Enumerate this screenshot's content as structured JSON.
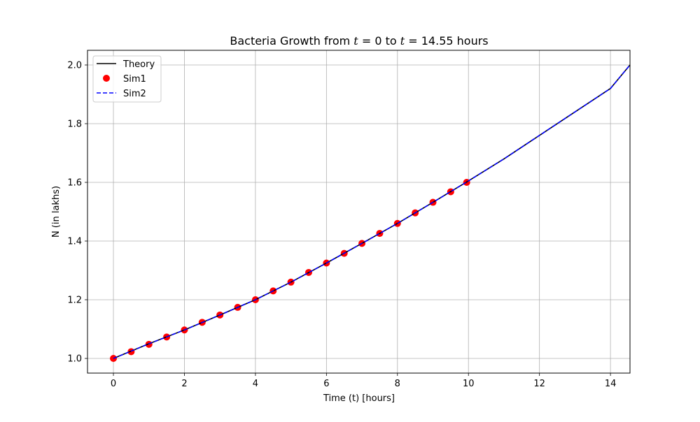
{
  "chart_data": {
    "type": "line",
    "title": "Bacteria Growth from t = 0 to t = 14.55 hours",
    "title_parts": {
      "prefix": "Bacteria Growth from ",
      "var1": "t",
      "mid1": " = 0 to ",
      "var2": "t",
      "suffix": " = 14.55 hours"
    },
    "xlabel": "Time (t) [hours]",
    "ylabel": "N (in lakhs)",
    "xlim": [
      -0.73,
      14.55
    ],
    "ylim": [
      0.95,
      2.05
    ],
    "xticks": [
      0,
      2,
      4,
      6,
      8,
      10,
      12,
      14
    ],
    "xtick_labels": [
      "0",
      "2",
      "4",
      "6",
      "8",
      "10",
      "12",
      "14"
    ],
    "yticks": [
      1.0,
      1.2,
      1.4,
      1.6,
      1.8,
      2.0
    ],
    "ytick_labels": [
      "1.0",
      "1.2",
      "1.4",
      "1.6",
      "1.8",
      "2.0"
    ],
    "grid": true,
    "legend_position": "upper-left",
    "legend": [
      "Theory",
      "Sim1",
      "Sim2"
    ],
    "series": [
      {
        "name": "Theory",
        "style": "solid-line",
        "color": "#000000",
        "x": [
          0,
          1,
          2,
          3,
          4,
          5,
          6,
          7,
          8,
          9,
          10,
          11,
          12,
          13,
          14,
          14.55
        ],
        "y": [
          1.0,
          1.05,
          1.097,
          1.148,
          1.2,
          1.26,
          1.325,
          1.392,
          1.46,
          1.532,
          1.605,
          1.68,
          1.76,
          1.84,
          1.92,
          2.0
        ]
      },
      {
        "name": "Sim1",
        "style": "scatter",
        "color": "#ff0000",
        "x": [
          0,
          0.5,
          1,
          1.5,
          2,
          2.5,
          3,
          3.5,
          4,
          4.5,
          5,
          5.5,
          6,
          6.5,
          7,
          7.5,
          8,
          8.5,
          9,
          9.5,
          9.95
        ],
        "y": [
          1.0,
          1.023,
          1.048,
          1.073,
          1.097,
          1.123,
          1.148,
          1.174,
          1.2,
          1.23,
          1.26,
          1.293,
          1.325,
          1.358,
          1.392,
          1.426,
          1.46,
          1.496,
          1.532,
          1.568,
          1.6
        ]
      },
      {
        "name": "Sim2",
        "style": "dashed-line",
        "color": "#0000ff",
        "x": [
          0,
          1,
          2,
          3,
          4,
          5,
          6,
          7,
          8,
          9,
          10,
          11,
          12,
          13,
          14,
          14.55
        ],
        "y": [
          1.0,
          1.05,
          1.097,
          1.148,
          1.2,
          1.26,
          1.325,
          1.392,
          1.46,
          1.532,
          1.605,
          1.68,
          1.76,
          1.84,
          1.92,
          2.0
        ]
      }
    ]
  }
}
